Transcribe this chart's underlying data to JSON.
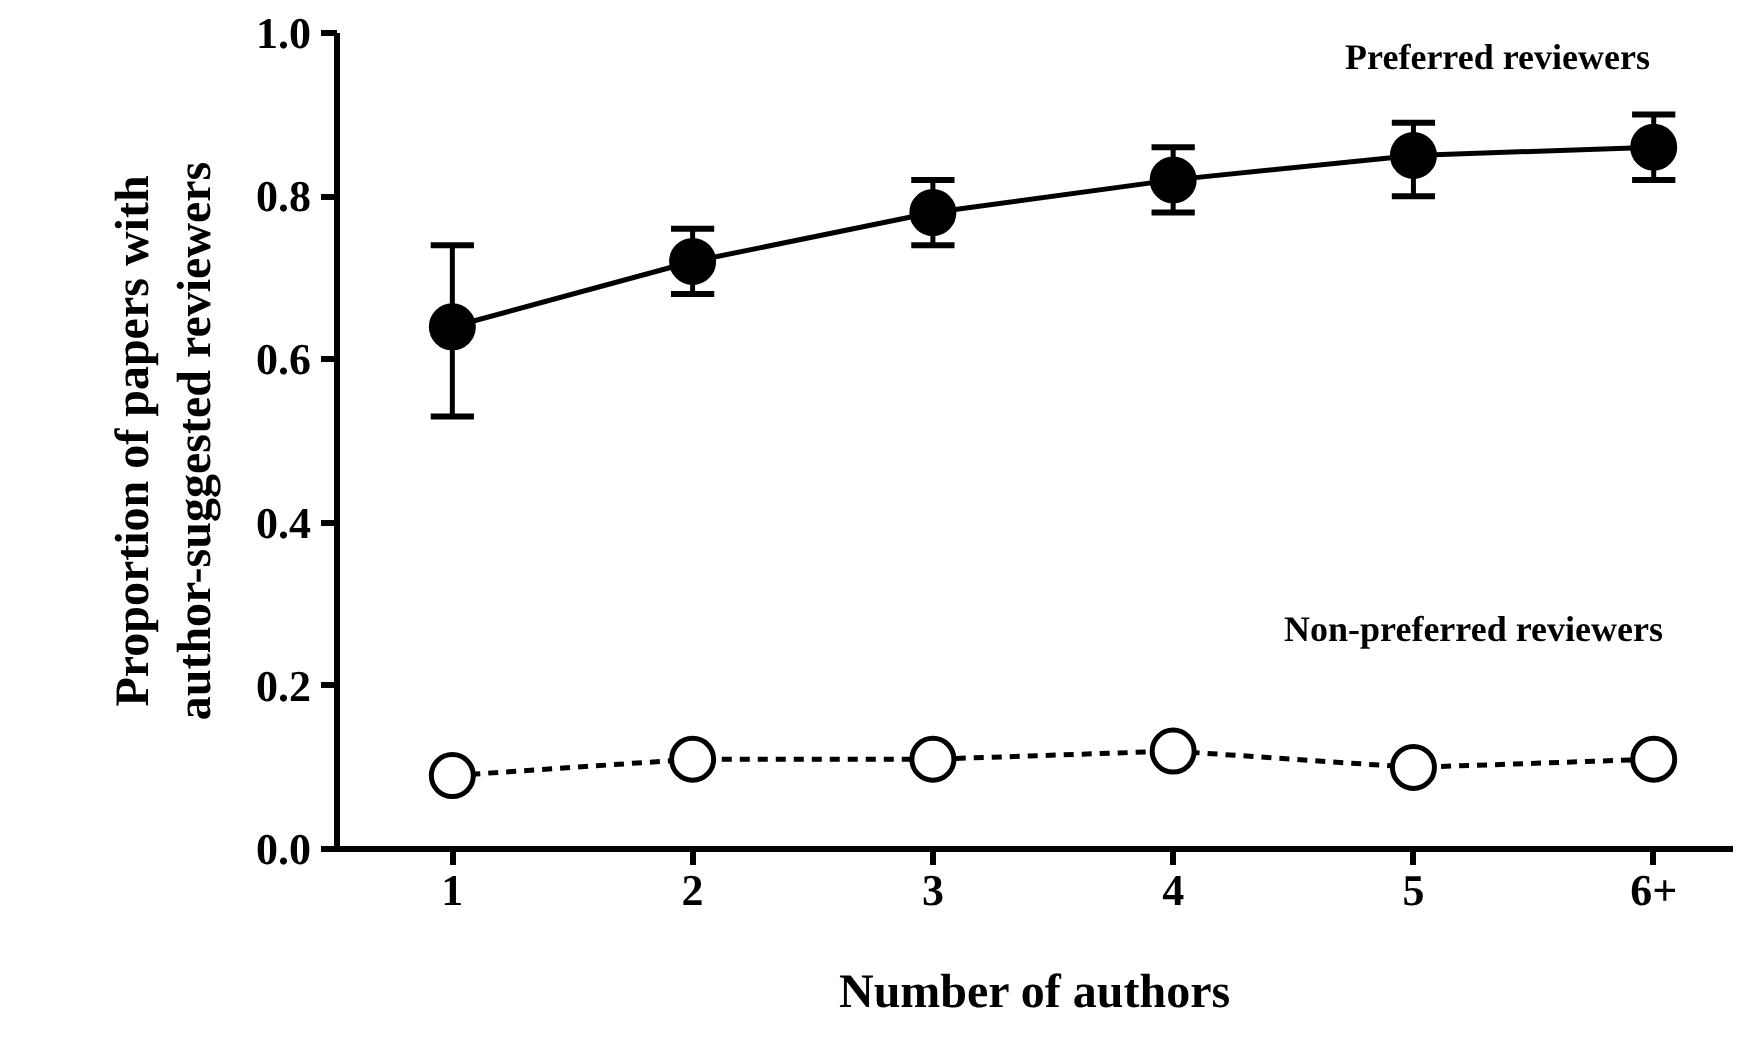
{
  "chart_data": {
    "type": "line",
    "xlabel": "Number of authors",
    "ylabel": "Proportion of papers with\nauthor-suggested reviewers",
    "categories": [
      "1",
      "2",
      "3",
      "4",
      "5",
      "6+"
    ],
    "ylim": [
      0,
      1.0
    ],
    "yticks": [
      {
        "value": 0,
        "label": "0.0"
      },
      {
        "value": 0.2,
        "label": "0.2"
      },
      {
        "value": 0.4,
        "label": "0.4"
      },
      {
        "value": 0.6,
        "label": "0.6"
      },
      {
        "value": 0.8,
        "label": "0.8"
      },
      {
        "value": 1.0,
        "label": "1.0"
      }
    ],
    "grid": false,
    "marker": "circle",
    "series": [
      {
        "name": "Preferred reviewers",
        "color": "#000000",
        "line_style": "solid",
        "values": [
          0.64,
          0.72,
          0.78,
          0.82,
          0.85,
          0.86
        ],
        "errors": [
          [
            0.53,
            0.74
          ],
          [
            0.68,
            0.76
          ],
          [
            0.74,
            0.82
          ],
          [
            0.78,
            0.86
          ],
          [
            0.8,
            0.89
          ],
          [
            0.82,
            0.9
          ]
        ]
      },
      {
        "name": "Non-preferred reviewers",
        "color": "#000000",
        "line_style": "dashed",
        "values": [
          0.09,
          0.11,
          0.11,
          0.12,
          0.1,
          0.11
        ]
      }
    ]
  }
}
